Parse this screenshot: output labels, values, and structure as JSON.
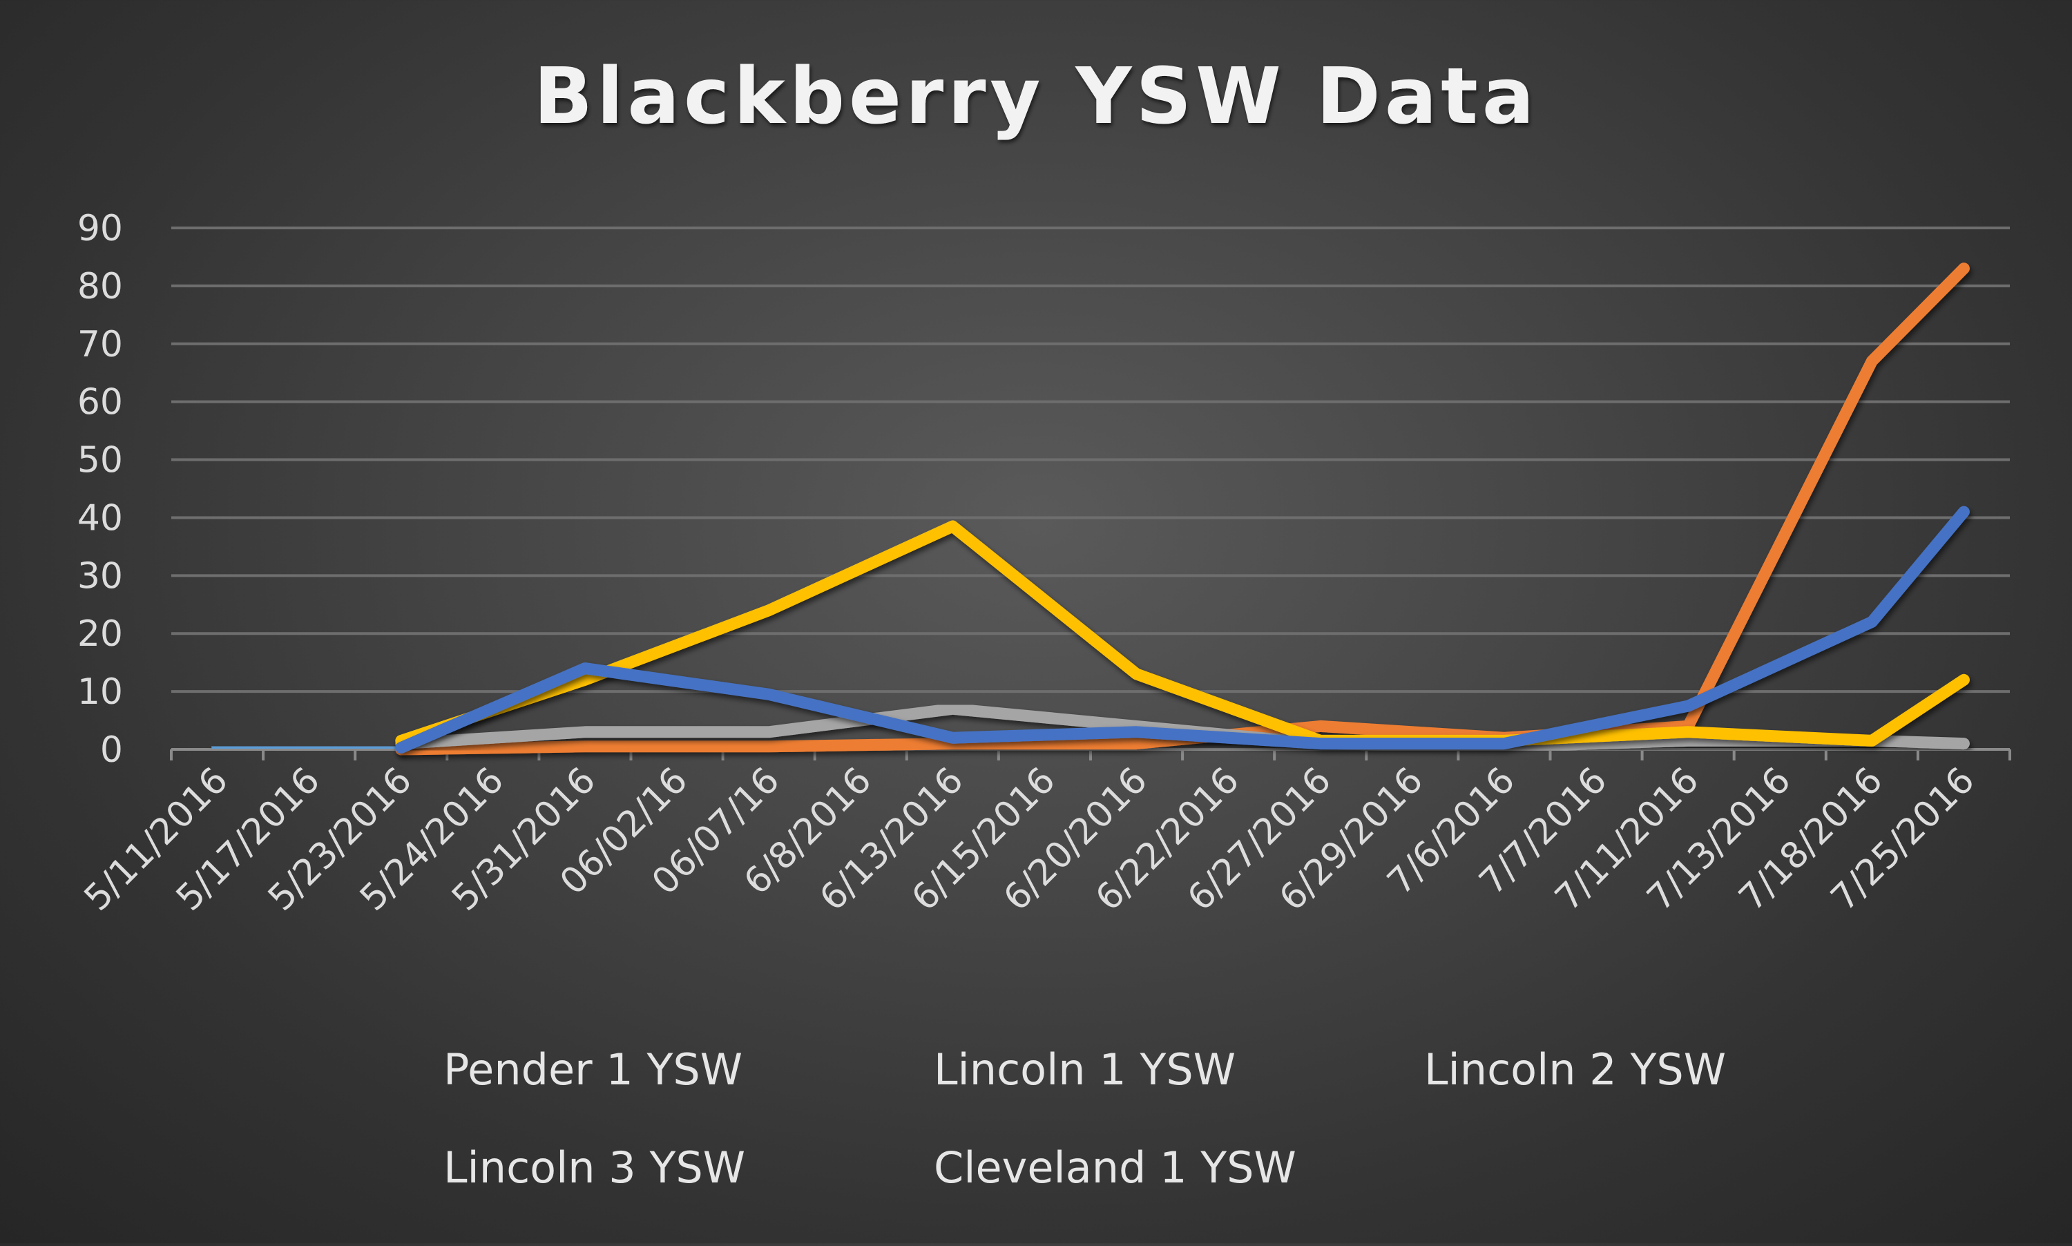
{
  "chart_data": {
    "type": "line",
    "title": "Blackberry YSW Data",
    "xlabel": "",
    "ylabel": "",
    "ylim": [
      0,
      90
    ],
    "yticks": [
      0,
      10,
      20,
      30,
      40,
      50,
      60,
      70,
      80,
      90
    ],
    "grid": true,
    "legend_position": "bottom",
    "categories": [
      "5/11/2016",
      "5/17/2016",
      "5/23/2016",
      "5/24/2016",
      "5/31/2016",
      "06/02/16",
      "06/07/16",
      "6/8/2016",
      "6/13/2016",
      "6/15/2016",
      "6/20/2016",
      "6/22/2016",
      "6/27/2016",
      "6/29/2016",
      "7/6/2016",
      "7/7/2016",
      "7/11/2016",
      "7/13/2016",
      "7/18/2016",
      "7/25/2016"
    ],
    "series": [
      {
        "name": "Pender 1 YSW",
        "color": "#5b9bd5",
        "values": [
          0.5,
          0.2,
          0.3,
          null,
          null,
          null,
          null,
          null,
          null,
          null,
          null,
          null,
          null,
          null,
          null,
          null,
          null,
          null,
          null,
          null
        ]
      },
      {
        "name": "Lincoln 1 YSW",
        "color": "#ed7d31",
        "values": [
          null,
          null,
          0,
          null,
          0.5,
          null,
          0.5,
          null,
          1,
          null,
          1,
          null,
          4,
          null,
          2,
          null,
          4,
          null,
          67,
          83
        ]
      },
      {
        "name": "Lincoln 2 YSW",
        "color": "#a5a5a5",
        "values": [
          null,
          null,
          1,
          null,
          3,
          null,
          3,
          null,
          7,
          null,
          4,
          null,
          1,
          null,
          0.5,
          null,
          1.5,
          null,
          1.5,
          1
        ]
      },
      {
        "name": "Lincoln 3 YSW",
        "color": "#ffc000",
        "values": [
          null,
          null,
          1.5,
          null,
          12,
          null,
          24,
          null,
          38.5,
          null,
          13,
          null,
          1.5,
          null,
          1.5,
          null,
          3,
          null,
          1.5,
          12
        ]
      },
      {
        "name": "Cleveland 1 YSW",
        "color": "#4472c4",
        "values": [
          null,
          null,
          0.3,
          null,
          14,
          null,
          9.5,
          null,
          2,
          null,
          3,
          null,
          1,
          null,
          1,
          null,
          7.5,
          null,
          22,
          41
        ]
      }
    ]
  }
}
